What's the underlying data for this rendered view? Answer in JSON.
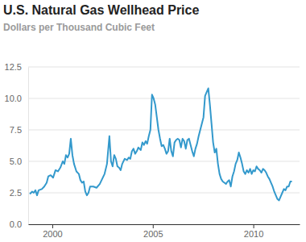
{
  "chart_data": {
    "type": "line",
    "title": "U.S. Natural Gas Wellhead Price",
    "subtitle": "Dollars per Thousand Cubic Feet",
    "color": "#3399cc",
    "grid": true,
    "xlim": [
      1998.8,
      2012.3
    ],
    "xticks": [
      2000,
      2005,
      2010
    ],
    "ylim": [
      0,
      12.5
    ],
    "yticks": [
      {
        "value": 0,
        "label": "0.0"
      },
      2.5,
      {
        "value": 5,
        "label": "5.0"
      },
      7.5,
      {
        "value": 10,
        "label": "10.0"
      },
      12.5
    ],
    "x": [
      1998.88,
      1999.0,
      1999.08,
      1999.16,
      1999.24,
      1999.32,
      1999.48,
      1999.6,
      1999.72,
      1999.8,
      1999.92,
      2000.04,
      2000.16,
      2000.28,
      2000.4,
      2000.52,
      2000.6,
      2000.68,
      2000.76,
      2000.84,
      2000.92,
      2001.0,
      2001.08,
      2001.2,
      2001.32,
      2001.4,
      2001.48,
      2001.56,
      2001.64,
      2001.72,
      2001.8,
      2001.88,
      2002.04,
      2002.2,
      2002.36,
      2002.48,
      2002.6,
      2002.72,
      2002.84,
      2002.92,
      2003.0,
      2003.08,
      2003.16,
      2003.24,
      2003.32,
      2003.4,
      2003.48,
      2003.6,
      2003.72,
      2003.8,
      2003.88,
      2003.96,
      2004.04,
      2004.12,
      2004.2,
      2004.28,
      2004.4,
      2004.48,
      2004.56,
      2004.64,
      2004.72,
      2004.8,
      2004.88,
      2004.96,
      2005.04,
      2005.12,
      2005.2,
      2005.28,
      2005.36,
      2005.44,
      2005.52,
      2005.6,
      2005.68,
      2005.76,
      2005.84,
      2005.92,
      2006.0,
      2006.08,
      2006.16,
      2006.24,
      2006.32,
      2006.4,
      2006.48,
      2006.56,
      2006.64,
      2006.72,
      2006.8,
      2006.88,
      2006.96,
      2007.04,
      2007.12,
      2007.2,
      2007.28,
      2007.36,
      2007.44,
      2007.52,
      2007.6,
      2007.68,
      2007.76,
      2007.84,
      2007.92,
      2008.0,
      2008.08,
      2008.16,
      2008.24,
      2008.32,
      2008.4,
      2008.48,
      2008.56,
      2008.64,
      2008.72,
      2008.8,
      2008.88,
      2008.96,
      2009.04,
      2009.12,
      2009.2,
      2009.28,
      2009.36,
      2009.44,
      2009.52,
      2009.6,
      2009.68,
      2009.76,
      2009.84,
      2009.92,
      2010.0,
      2010.08,
      2010.16,
      2010.24,
      2010.32,
      2010.4,
      2010.48,
      2010.56,
      2010.64,
      2010.72,
      2010.8,
      2010.88,
      2010.96,
      2011.04,
      2011.12,
      2011.2,
      2011.28,
      2011.36,
      2011.44,
      2011.52,
      2011.6,
      2011.68,
      2011.76,
      2011.84,
      2011.92
    ],
    "values": [
      2.4,
      2.6,
      2.5,
      2.7,
      2.3,
      2.7,
      2.8,
      3.0,
      3.3,
      3.8,
      3.9,
      3.7,
      4.3,
      4.2,
      4.5,
      5.0,
      4.8,
      5.5,
      5.3,
      5.6,
      6.8,
      5.5,
      4.8,
      4.2,
      4.0,
      3.5,
      3.3,
      3.4,
      2.6,
      2.3,
      2.5,
      3.0,
      3.0,
      2.9,
      3.2,
      3.6,
      4.0,
      4.8,
      7.0,
      5.0,
      4.6,
      5.5,
      5.2,
      4.6,
      4.5,
      4.3,
      4.8,
      5.2,
      5.1,
      5.3,
      5.2,
      5.8,
      6.0,
      5.6,
      5.8,
      6.1,
      5.9,
      6.5,
      6.3,
      6.6,
      6.4,
      7.0,
      7.5,
      10.3,
      10.0,
      9.5,
      8.5,
      7.5,
      6.8,
      6.2,
      6.3,
      6.0,
      5.6,
      5.8,
      6.8,
      5.8,
      5.4,
      6.5,
      6.7,
      6.8,
      6.7,
      6.1,
      6.8,
      6.6,
      6.0,
      6.7,
      6.8,
      6.3,
      5.8,
      5.4,
      6.0,
      6.4,
      7.0,
      7.5,
      8.0,
      8.5,
      10.2,
      10.5,
      10.8,
      9.5,
      8.0,
      6.5,
      5.7,
      6.0,
      4.8,
      4.0,
      3.6,
      3.4,
      3.3,
      3.2,
      3.4,
      3.5,
      3.0,
      3.8,
      4.2,
      4.8,
      5.1,
      5.7,
      5.3,
      4.8,
      4.2,
      4.0,
      4.3,
      4.1,
      4.4,
      4.0,
      4.3,
      4.2,
      4.6,
      4.4,
      4.3,
      4.1,
      4.4,
      4.3,
      4.1,
      3.8,
      3.6,
      3.3,
      3.0,
      2.6,
      2.3,
      2.0,
      1.9,
      2.2,
      2.5,
      2.8,
      2.7,
      3.0,
      3.0,
      3.4,
      3.4
    ]
  }
}
